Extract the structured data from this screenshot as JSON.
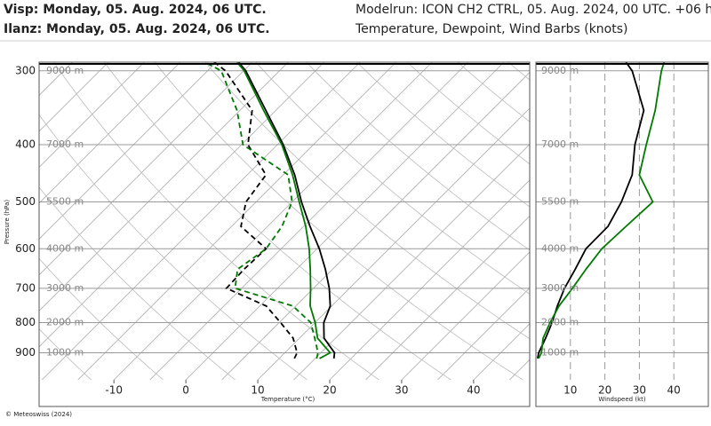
{
  "header": {
    "copyright": "© Meteoswiss (2024)"
  },
  "chart_data": [
    {
      "type": "skewt",
      "subtitle": "Modelrun: ICON CH2 CTRL, 05. Aug. 2024, 00 UTC. +06 h",
      "title": "Temperature, Dewpoint, Wind Barbs (knots)",
      "stations": [
        {
          "title": "Visp: Monday, 05. Aug. 2024, 06 UTC.",
          "color": "#000000"
        },
        {
          "title": "Ilanz: Monday, 05. Aug. 2024, 06 UTC.",
          "color": "#007a00"
        }
      ],
      "xlabel": "Temperature (°C)",
      "ylabel": "Pressure (hPa)",
      "y": [
        920,
        900,
        850,
        800,
        750,
        700,
        650,
        600,
        550,
        500,
        450,
        400,
        350,
        300,
        290
      ],
      "ylim": [
        1000,
        290
      ],
      "yticks": [
        300,
        400,
        500,
        600,
        700,
        800,
        900
      ],
      "log_y": true,
      "y2ticks": [
        {
          "value": 300,
          "label": "9000 m"
        },
        {
          "value": 400,
          "label": "7000 m"
        },
        {
          "value": 500,
          "label": "5500 m"
        },
        {
          "value": 600,
          "label": "4000 m"
        },
        {
          "value": 700,
          "label": "3000 m"
        },
        {
          "value": 800,
          "label": "2000 m"
        },
        {
          "value": 900,
          "label": "1000 m"
        }
      ],
      "xlim": [
        -20.4,
        47.8
      ],
      "xticks": [
        -10,
        0,
        10,
        20,
        30,
        40
      ],
      "series": [
        {
          "station": 0,
          "dashed": false,
          "color": "#000000",
          "values": [
            17.6,
            16.9,
            13.4,
            11.2,
            9.8,
            7.2,
            4.0,
            0.3,
            -4.1,
            -8.7,
            -13.4,
            -19.2,
            -26.4,
            -34.7,
            -36.9
          ]
        },
        {
          "station": 1,
          "dashed": false,
          "color": "#007a00",
          "values": [
            15.6,
            16.3,
            12.5,
            10.0,
            7.0,
            4.6,
            1.9,
            -1.1,
            -4.7,
            -9.0,
            -13.7,
            -19.4,
            -26.7,
            -34.9,
            -37.1
          ]
        },
        {
          "station": 0,
          "dashed": true,
          "color": "#000000",
          "values": [
            12.1,
            11.7,
            9.1,
            5.2,
            0.9,
            -7.1,
            -7.3,
            -7.1,
            -13.7,
            -16.4,
            -17.4,
            -24.1,
            -28.3,
            -37.5,
            -40.3
          ]
        },
        {
          "station": 1,
          "dashed": true,
          "color": "#007a00",
          "values": [
            15.2,
            14.6,
            12.1,
            9.4,
            4.6,
            -5.9,
            -8.2,
            -7.1,
            -8.0,
            -10.0,
            -14.3,
            -24.8,
            -30.4,
            -38.1,
            -41.6
          ]
        }
      ]
    },
    {
      "type": "profile",
      "xlabel": "Windspeed (kt)",
      "y": [
        920,
        900,
        850,
        800,
        750,
        700,
        650,
        600,
        550,
        500,
        450,
        400,
        350,
        300,
        290
      ],
      "xlim": [
        0,
        50
      ],
      "xticks": [
        10,
        20,
        30,
        40
      ],
      "series": [
        {
          "color": "#000000",
          "values": [
            0.5,
            0.8,
            2.8,
            4.7,
            6.2,
            8.3,
            11.4,
            14.5,
            20.9,
            24.8,
            27.9,
            28.7,
            31.3,
            27.9,
            26.1
          ]
        },
        {
          "color": "#007a00",
          "values": [
            0.8,
            1.6,
            2.1,
            4.1,
            6.7,
            10.6,
            14.5,
            19.1,
            26.1,
            33.9,
            30.0,
            32.0,
            34.6,
            36.4,
            37.2
          ]
        }
      ]
    }
  ]
}
